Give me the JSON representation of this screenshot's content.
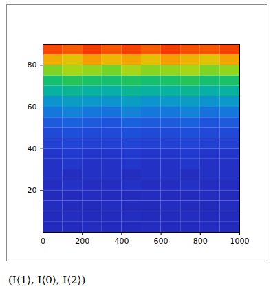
{
  "chart_data": {
    "type": "heatmap",
    "caption": "(I⟨1⟩, I⟨0⟩, I⟨2⟩)",
    "xlim": [
      0,
      1000
    ],
    "xticks": [
      0,
      200,
      400,
      600,
      800,
      1000
    ],
    "ylim": [
      0,
      90
    ],
    "yticks": [
      20,
      40,
      60,
      80
    ],
    "x_edges": [
      0,
      100,
      200,
      300,
      400,
      500,
      600,
      700,
      800,
      900,
      1000
    ],
    "y_edges": [
      0,
      5,
      10,
      15,
      20,
      25,
      30,
      35,
      40,
      45,
      50,
      55,
      60,
      65,
      70,
      75,
      80,
      85,
      90
    ],
    "color_domain": [
      0,
      1
    ],
    "cells": [
      [
        0.1,
        0.1,
        0.11,
        0.1,
        0.1,
        0.11,
        0.1,
        0.1,
        0.11,
        0.1
      ],
      [
        0.1,
        0.11,
        0.1,
        0.1,
        0.11,
        0.1,
        0.1,
        0.11,
        0.1,
        0.1
      ],
      [
        0.11,
        0.1,
        0.1,
        0.11,
        0.1,
        0.1,
        0.11,
        0.1,
        0.1,
        0.11
      ],
      [
        0.1,
        0.1,
        0.11,
        0.1,
        0.1,
        0.11,
        0.1,
        0.1,
        0.11,
        0.1
      ],
      [
        0.11,
        0.12,
        0.11,
        0.11,
        0.12,
        0.11,
        0.11,
        0.12,
        0.11,
        0.11
      ],
      [
        0.12,
        0.11,
        0.12,
        0.12,
        0.11,
        0.12,
        0.12,
        0.11,
        0.12,
        0.12
      ],
      [
        0.12,
        0.13,
        0.12,
        0.12,
        0.13,
        0.12,
        0.12,
        0.13,
        0.12,
        0.12
      ],
      [
        0.13,
        0.14,
        0.13,
        0.13,
        0.14,
        0.13,
        0.13,
        0.14,
        0.13,
        0.13
      ],
      [
        0.15,
        0.16,
        0.15,
        0.15,
        0.16,
        0.15,
        0.15,
        0.16,
        0.15,
        0.15
      ],
      [
        0.17,
        0.18,
        0.17,
        0.17,
        0.18,
        0.17,
        0.17,
        0.18,
        0.17,
        0.17
      ],
      [
        0.2,
        0.21,
        0.2,
        0.19,
        0.21,
        0.2,
        0.2,
        0.21,
        0.19,
        0.2
      ],
      [
        0.25,
        0.27,
        0.25,
        0.24,
        0.27,
        0.25,
        0.25,
        0.27,
        0.24,
        0.25
      ],
      [
        0.3,
        0.32,
        0.31,
        0.3,
        0.32,
        0.3,
        0.31,
        0.32,
        0.3,
        0.31
      ],
      [
        0.38,
        0.4,
        0.38,
        0.37,
        0.4,
        0.38,
        0.38,
        0.4,
        0.37,
        0.38
      ],
      [
        0.45,
        0.48,
        0.46,
        0.45,
        0.47,
        0.45,
        0.46,
        0.48,
        0.45,
        0.46
      ],
      [
        0.58,
        0.62,
        0.6,
        0.57,
        0.62,
        0.59,
        0.6,
        0.62,
        0.58,
        0.6
      ],
      [
        0.74,
        0.7,
        0.76,
        0.72,
        0.75,
        0.71,
        0.76,
        0.73,
        0.7,
        0.75
      ],
      [
        0.88,
        0.85,
        0.9,
        0.86,
        0.89,
        0.85,
        0.9,
        0.87,
        0.86,
        0.89
      ]
    ],
    "tick_labels": true
  }
}
